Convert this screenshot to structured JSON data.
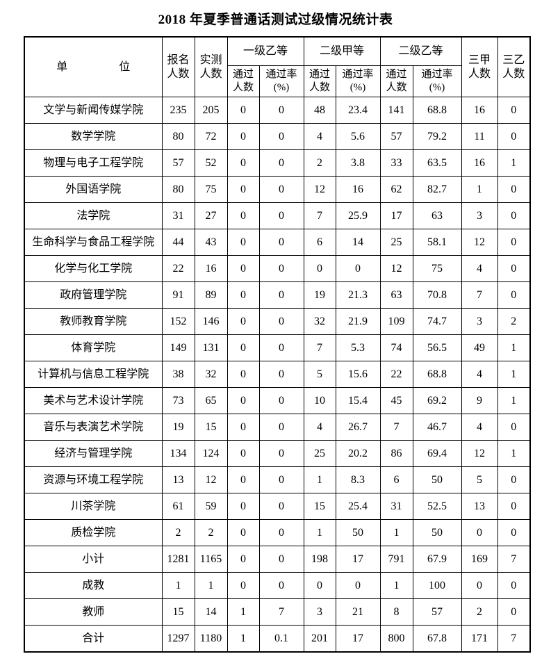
{
  "title": "2018 年夏季普通话测试过级情况统计表",
  "table": {
    "header": {
      "unit_left": "单",
      "unit_right": "位",
      "enroll": "报名\n人数",
      "tested": "实测\n人数",
      "groups": [
        "一级乙等",
        "二级甲等",
        "二级乙等"
      ],
      "sub_pass": "通过\n人数",
      "sub_rate": "通过率\n(%)",
      "grade3a": "三甲\n人数",
      "grade3b": "三乙\n人数"
    },
    "rows": [
      {
        "unit": "文学与新闻传媒学院",
        "values": [
          "235",
          "205",
          "0",
          "0",
          "48",
          "23.4",
          "141",
          "68.8",
          "16",
          "0"
        ]
      },
      {
        "unit": "数学学院",
        "values": [
          "80",
          "72",
          "0",
          "0",
          "4",
          "5.6",
          "57",
          "79.2",
          "11",
          "0"
        ]
      },
      {
        "unit": "物理与电子工程学院",
        "values": [
          "57",
          "52",
          "0",
          "0",
          "2",
          "3.8",
          "33",
          "63.5",
          "16",
          "1"
        ]
      },
      {
        "unit": "外国语学院",
        "values": [
          "80",
          "75",
          "0",
          "0",
          "12",
          "16",
          "62",
          "82.7",
          "1",
          "0"
        ]
      },
      {
        "unit": "法学院",
        "values": [
          "31",
          "27",
          "0",
          "0",
          "7",
          "25.9",
          "17",
          "63",
          "3",
          "0"
        ]
      },
      {
        "unit": "生命科学与食品工程学院",
        "values": [
          "44",
          "43",
          "0",
          "0",
          "6",
          "14",
          "25",
          "58.1",
          "12",
          "0"
        ]
      },
      {
        "unit": "化学与化工学院",
        "values": [
          "22",
          "16",
          "0",
          "0",
          "0",
          "0",
          "12",
          "75",
          "4",
          "0"
        ]
      },
      {
        "unit": "政府管理学院",
        "values": [
          "91",
          "89",
          "0",
          "0",
          "19",
          "21.3",
          "63",
          "70.8",
          "7",
          "0"
        ]
      },
      {
        "unit": "教师教育学院",
        "values": [
          "152",
          "146",
          "0",
          "0",
          "32",
          "21.9",
          "109",
          "74.7",
          "3",
          "2"
        ]
      },
      {
        "unit": "体育学院",
        "values": [
          "149",
          "131",
          "0",
          "0",
          "7",
          "5.3",
          "74",
          "56.5",
          "49",
          "1"
        ]
      },
      {
        "unit": "计算机与信息工程学院",
        "values": [
          "38",
          "32",
          "0",
          "0",
          "5",
          "15.6",
          "22",
          "68.8",
          "4",
          "1"
        ]
      },
      {
        "unit": "美术与艺术设计学院",
        "values": [
          "73",
          "65",
          "0",
          "0",
          "10",
          "15.4",
          "45",
          "69.2",
          "9",
          "1"
        ]
      },
      {
        "unit": "音乐与表演艺术学院",
        "values": [
          "19",
          "15",
          "0",
          "0",
          "4",
          "26.7",
          "7",
          "46.7",
          "4",
          "0"
        ]
      },
      {
        "unit": "经济与管理学院",
        "values": [
          "134",
          "124",
          "0",
          "0",
          "25",
          "20.2",
          "86",
          "69.4",
          "12",
          "1"
        ]
      },
      {
        "unit": "资源与环境工程学院",
        "values": [
          "13",
          "12",
          "0",
          "0",
          "1",
          "8.3",
          "6",
          "50",
          "5",
          "0"
        ]
      },
      {
        "unit": "川茶学院",
        "values": [
          "61",
          "59",
          "0",
          "0",
          "15",
          "25.4",
          "31",
          "52.5",
          "13",
          "0"
        ]
      },
      {
        "unit": "质检学院",
        "values": [
          "2",
          "2",
          "0",
          "0",
          "1",
          "50",
          "1",
          "50",
          "0",
          "0"
        ]
      },
      {
        "unit": "小计",
        "values": [
          "1281",
          "1165",
          "0",
          "0",
          "198",
          "17",
          "791",
          "67.9",
          "169",
          "7"
        ]
      },
      {
        "unit": "成教",
        "values": [
          "1",
          "1",
          "0",
          "0",
          "0",
          "0",
          "1",
          "100",
          "0",
          "0"
        ]
      },
      {
        "unit": "教师",
        "values": [
          "15",
          "14",
          "1",
          "7",
          "3",
          "21",
          "8",
          "57",
          "2",
          "0"
        ]
      },
      {
        "unit": "合计",
        "values": [
          "1297",
          "1180",
          "1",
          "0.1",
          "201",
          "17",
          "800",
          "67.8",
          "171",
          "7"
        ]
      }
    ]
  }
}
